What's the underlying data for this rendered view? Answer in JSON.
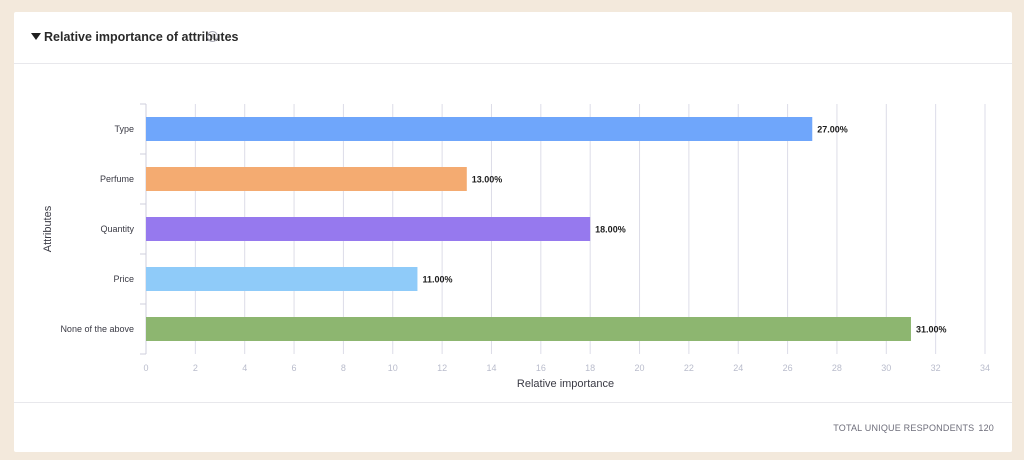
{
  "header": {
    "title": "Relative importance of attributes",
    "info_icon": "info-icon",
    "toggle_icon": "caret-down-icon"
  },
  "footer": {
    "label": "TOTAL UNIQUE RESPONDENTS",
    "count": "120"
  },
  "chart_data": {
    "type": "bar",
    "orientation": "horizontal",
    "title": "Relative importance of attributes",
    "xlabel": "Relative importance",
    "ylabel": "Attributes",
    "xlim": [
      0,
      34
    ],
    "xticks": [
      0,
      2,
      4,
      6,
      8,
      10,
      12,
      14,
      16,
      18,
      20,
      22,
      24,
      26,
      28,
      30,
      32,
      34
    ],
    "grid": true,
    "categories": [
      "Type",
      "Perfume",
      "Quantity",
      "Price",
      "None of the above"
    ],
    "values": [
      27,
      13,
      18,
      11,
      31
    ],
    "value_labels": [
      "27.00%",
      "13.00%",
      "18.00%",
      "11.00%",
      "31.00%"
    ],
    "colors": [
      "#6fa6fb",
      "#f4ab71",
      "#9679ee",
      "#8fcbf9",
      "#8db670"
    ]
  }
}
